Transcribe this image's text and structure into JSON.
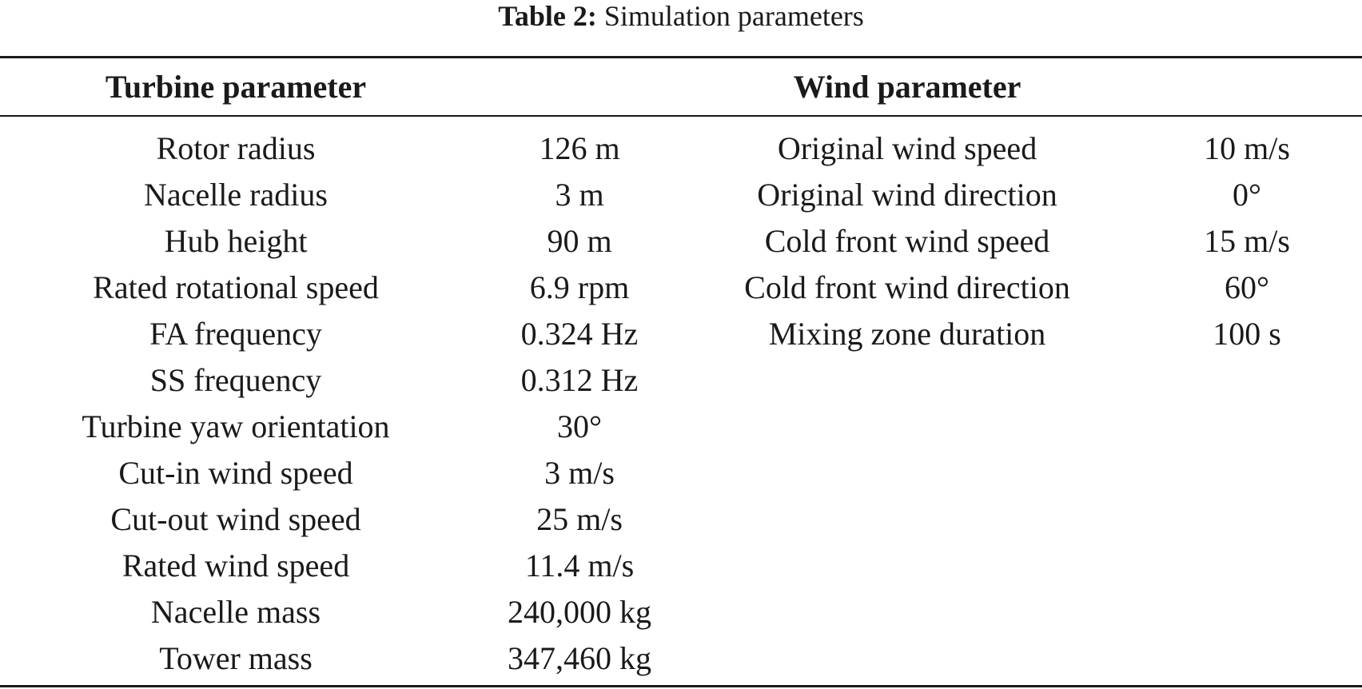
{
  "caption": {
    "label": "Table 2:",
    "text": " Simulation parameters"
  },
  "headers": {
    "turbine": "Turbine parameter",
    "wind": "Wind parameter"
  },
  "turbine_rows": [
    {
      "name": "Rotor radius",
      "value": "126 m"
    },
    {
      "name": "Nacelle radius",
      "value": "3 m"
    },
    {
      "name": "Hub height",
      "value": "90 m"
    },
    {
      "name": "Rated rotational speed",
      "value": "6.9 rpm"
    },
    {
      "name": "FA frequency",
      "value": "0.324 Hz"
    },
    {
      "name": "SS frequency",
      "value": "0.312 Hz"
    },
    {
      "name": "Turbine yaw orientation",
      "value": "30°"
    },
    {
      "name": "Cut-in wind speed",
      "value": "3 m/s"
    },
    {
      "name": "Cut-out wind speed",
      "value": "25 m/s"
    },
    {
      "name": "Rated wind speed",
      "value": "11.4 m/s"
    },
    {
      "name": "Nacelle mass",
      "value": "240,000 kg"
    },
    {
      "name": "Tower mass",
      "value": "347,460 kg"
    }
  ],
  "wind_rows": [
    {
      "name": "Original wind speed",
      "value": "10 m/s"
    },
    {
      "name": "Original wind direction",
      "value": "0°"
    },
    {
      "name": "Cold front wind speed",
      "value": "15 m/s"
    },
    {
      "name": "Cold front wind direction",
      "value": "60°"
    },
    {
      "name": "Mixing zone duration",
      "value": "100 s"
    }
  ]
}
